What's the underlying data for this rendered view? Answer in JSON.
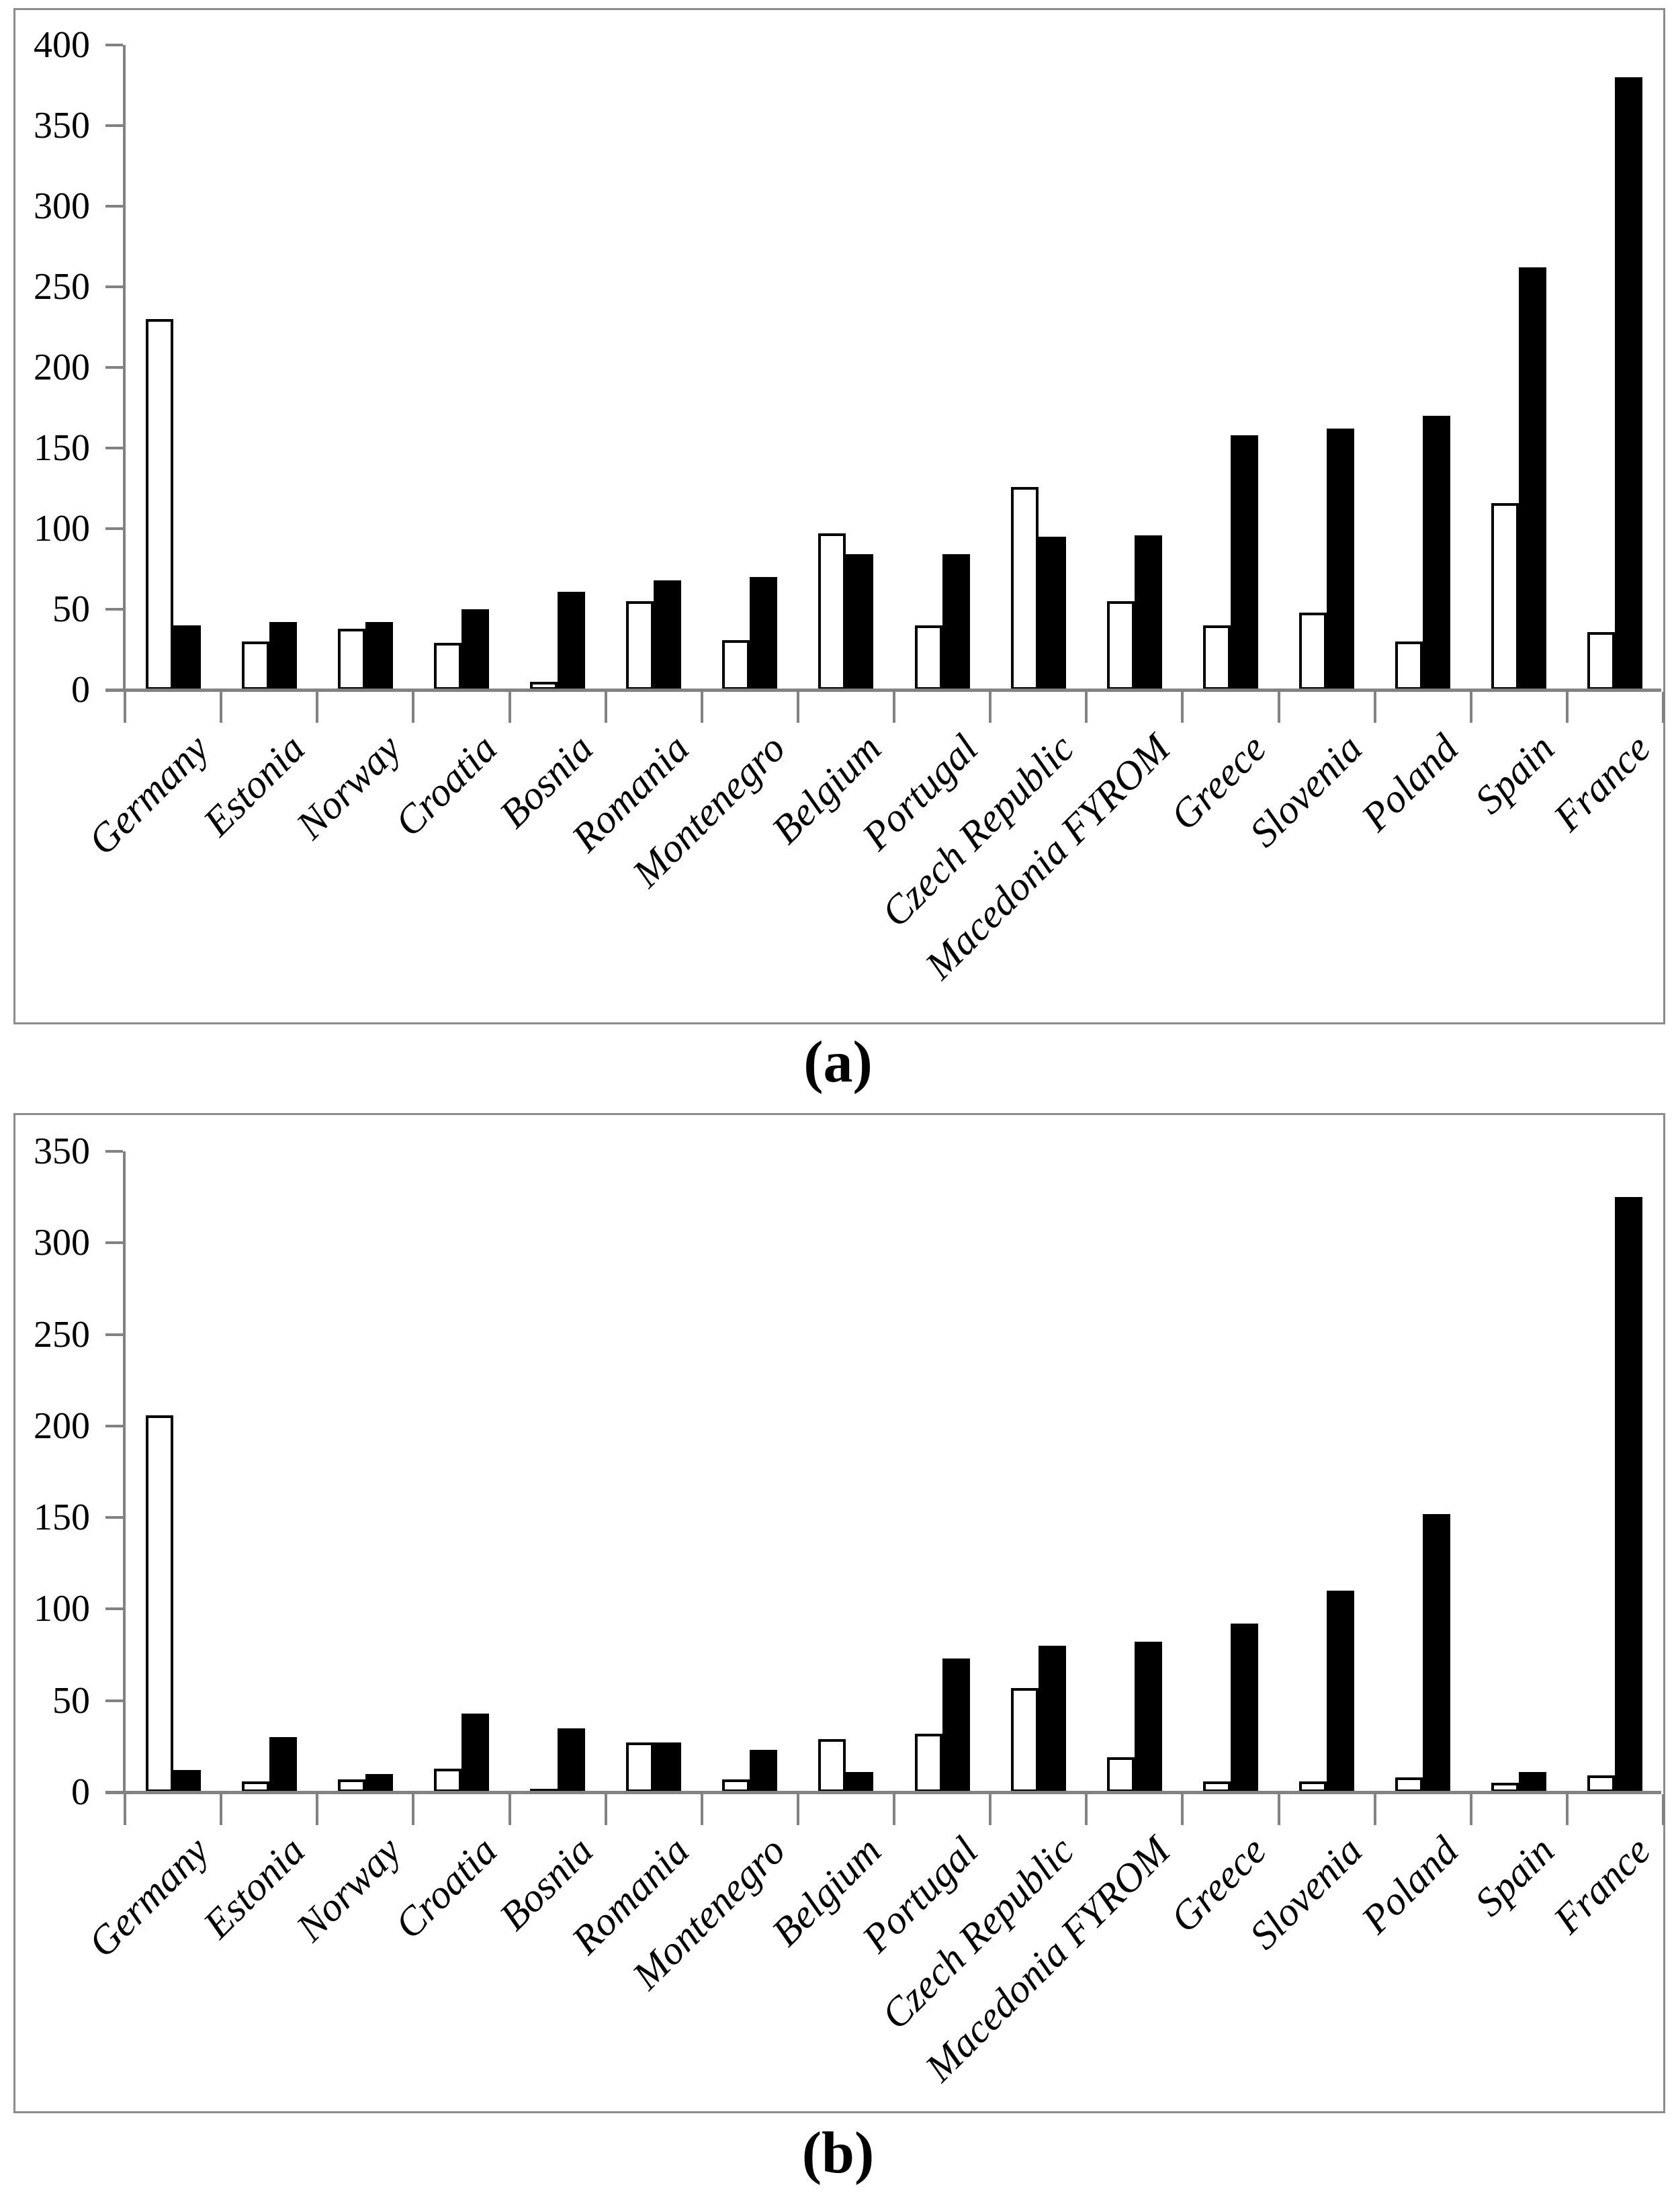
{
  "figure": {
    "description": "Two stacked panels of grouped bar charts comparing an open (white) series and a filled (black) series per country",
    "panel_count": 2
  },
  "colors": {
    "bar_filled": "#000000",
    "bar_open_fill": "#ffffff",
    "bar_open_outline": "#000000",
    "axis": "#828282",
    "box_border": "#8c8c8c",
    "text": "#000000"
  },
  "chart_data": [
    {
      "type": "bar",
      "caption": "(a)",
      "title": "",
      "xlabel": "",
      "ylabel": "",
      "grid": "off",
      "legend": "none",
      "ylim": [
        0,
        400
      ],
      "ytick_step": 50,
      "ytick_labels": [
        "0",
        "50",
        "100",
        "150",
        "200",
        "250",
        "300",
        "350",
        "400"
      ],
      "categories": [
        "Germany",
        "Estonia",
        "Norway",
        "Croatia",
        "Bosnia",
        "Romania",
        "Montenegro",
        "Belgium",
        "Portugal",
        "Czech Republic",
        "Macedonia FYROM",
        "Greece",
        "Slovenia",
        "Poland",
        "Spain",
        "France"
      ],
      "series": [
        {
          "name": "open-bars",
          "values": [
            230,
            30,
            38,
            29,
            5,
            55,
            31,
            97,
            40,
            126,
            55,
            40,
            48,
            30,
            116,
            36
          ]
        },
        {
          "name": "filled-bars",
          "values": [
            40,
            42,
            42,
            50,
            61,
            68,
            70,
            84,
            84,
            95,
            96,
            158,
            162,
            170,
            262,
            380
          ]
        }
      ]
    },
    {
      "type": "bar",
      "caption": "(b)",
      "title": "",
      "xlabel": "",
      "ylabel": "",
      "grid": "off",
      "legend": "none",
      "ylim": [
        0,
        350
      ],
      "ytick_step": 50,
      "ytick_labels": [
        "0",
        "50",
        "100",
        "150",
        "200",
        "250",
        "300",
        "350"
      ],
      "categories": [
        "Germany",
        "Estonia",
        "Norway",
        "Croatia",
        "Bosnia",
        "Romania",
        "Montenegro",
        "Belgium",
        "Portugal",
        "Czech Republic",
        "Macedonia FYROM",
        "Greece",
        "Slovenia",
        "Poland",
        "Spain",
        "France"
      ],
      "series": [
        {
          "name": "open-bars",
          "values": [
            206,
            6,
            7,
            13,
            2,
            27,
            7,
            29,
            32,
            57,
            19,
            6,
            6,
            8,
            5,
            9
          ]
        },
        {
          "name": "filled-bars",
          "values": [
            12,
            30,
            10,
            43,
            35,
            27,
            23,
            11,
            73,
            80,
            82,
            92,
            110,
            152,
            11,
            325
          ]
        }
      ]
    }
  ]
}
